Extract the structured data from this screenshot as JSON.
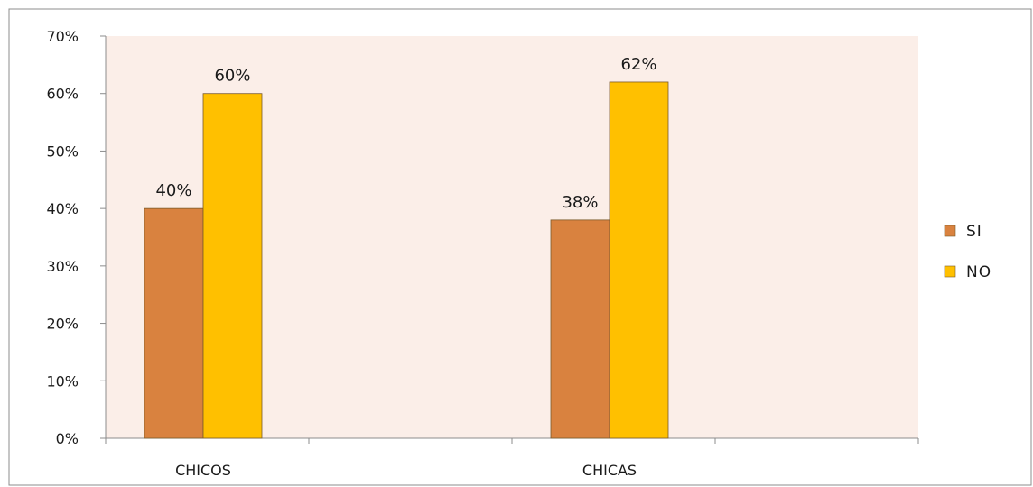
{
  "chart_data": {
    "type": "bar",
    "categories": [
      "CHICOS",
      "CHICAS"
    ],
    "series": [
      {
        "name": "SI",
        "values": [
          40,
          38
        ],
        "color": "#D9823F"
      },
      {
        "name": "NO",
        "values": [
          60,
          62
        ],
        "color": "#FFC000"
      }
    ],
    "data_labels": [
      [
        "40%",
        "38%"
      ],
      [
        "60%",
        "62%"
      ]
    ],
    "y_ticks": [
      "0%",
      "10%",
      "20%",
      "30%",
      "40%",
      "50%",
      "60%",
      "70%"
    ],
    "ylim": [
      0,
      70
    ],
    "title": "",
    "xlabel": "",
    "ylabel": "",
    "legend_position": "right",
    "plot_background": "#FBEEE8",
    "grid": false
  }
}
